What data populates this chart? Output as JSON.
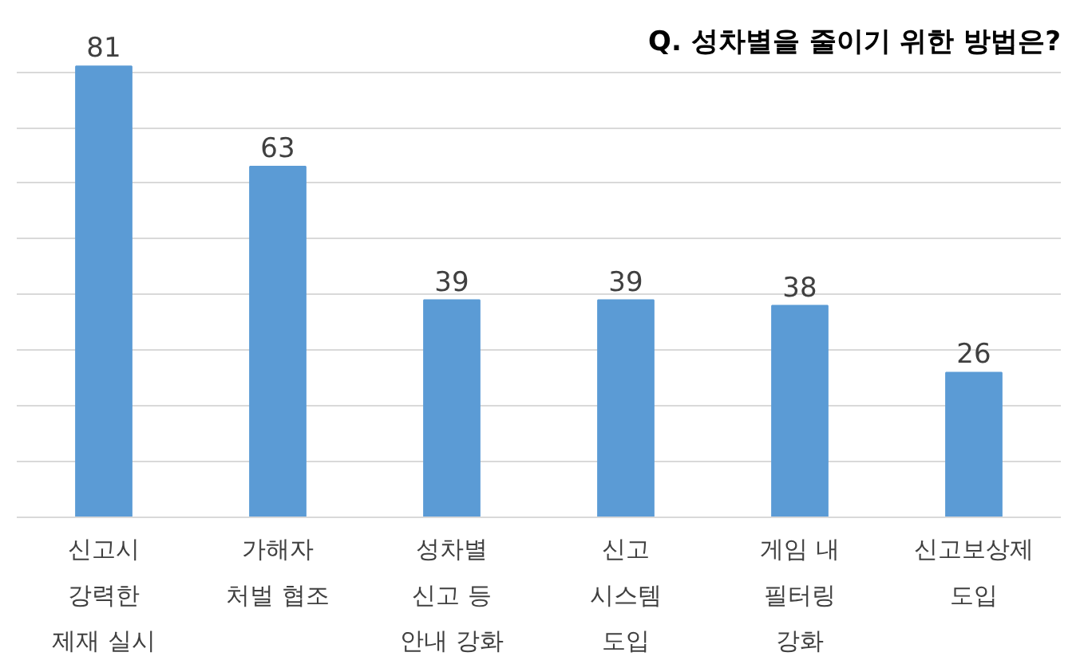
{
  "chart_data": {
    "type": "bar",
    "title": "Q. 성차별을 줄이기 위한 방법은?",
    "categories": [
      "신고시\n강력한\n제재 실시",
      "가해자\n처벌 협조",
      "성차별\n신고 등\n안내 강화",
      "신고\n시스템\n도입",
      "게임 내\n필터링\n강화",
      "신고보상제\n도입"
    ],
    "values": [
      81,
      63,
      39,
      39,
      38,
      26
    ],
    "color": "#5b9bd5",
    "data_labels": true,
    "yticks": [
      {
        "value": 0,
        "label": null
      },
      {
        "value": 10,
        "label": null
      },
      {
        "value": 20,
        "label": null
      },
      {
        "value": 30,
        "label": null
      },
      {
        "value": 40,
        "label": null
      },
      {
        "value": 50,
        "label": null
      },
      {
        "value": 60,
        "label": null
      },
      {
        "value": 70,
        "label": null
      },
      {
        "value": 80,
        "label": null
      }
    ],
    "grid": "y",
    "tick_labels": "x"
  }
}
